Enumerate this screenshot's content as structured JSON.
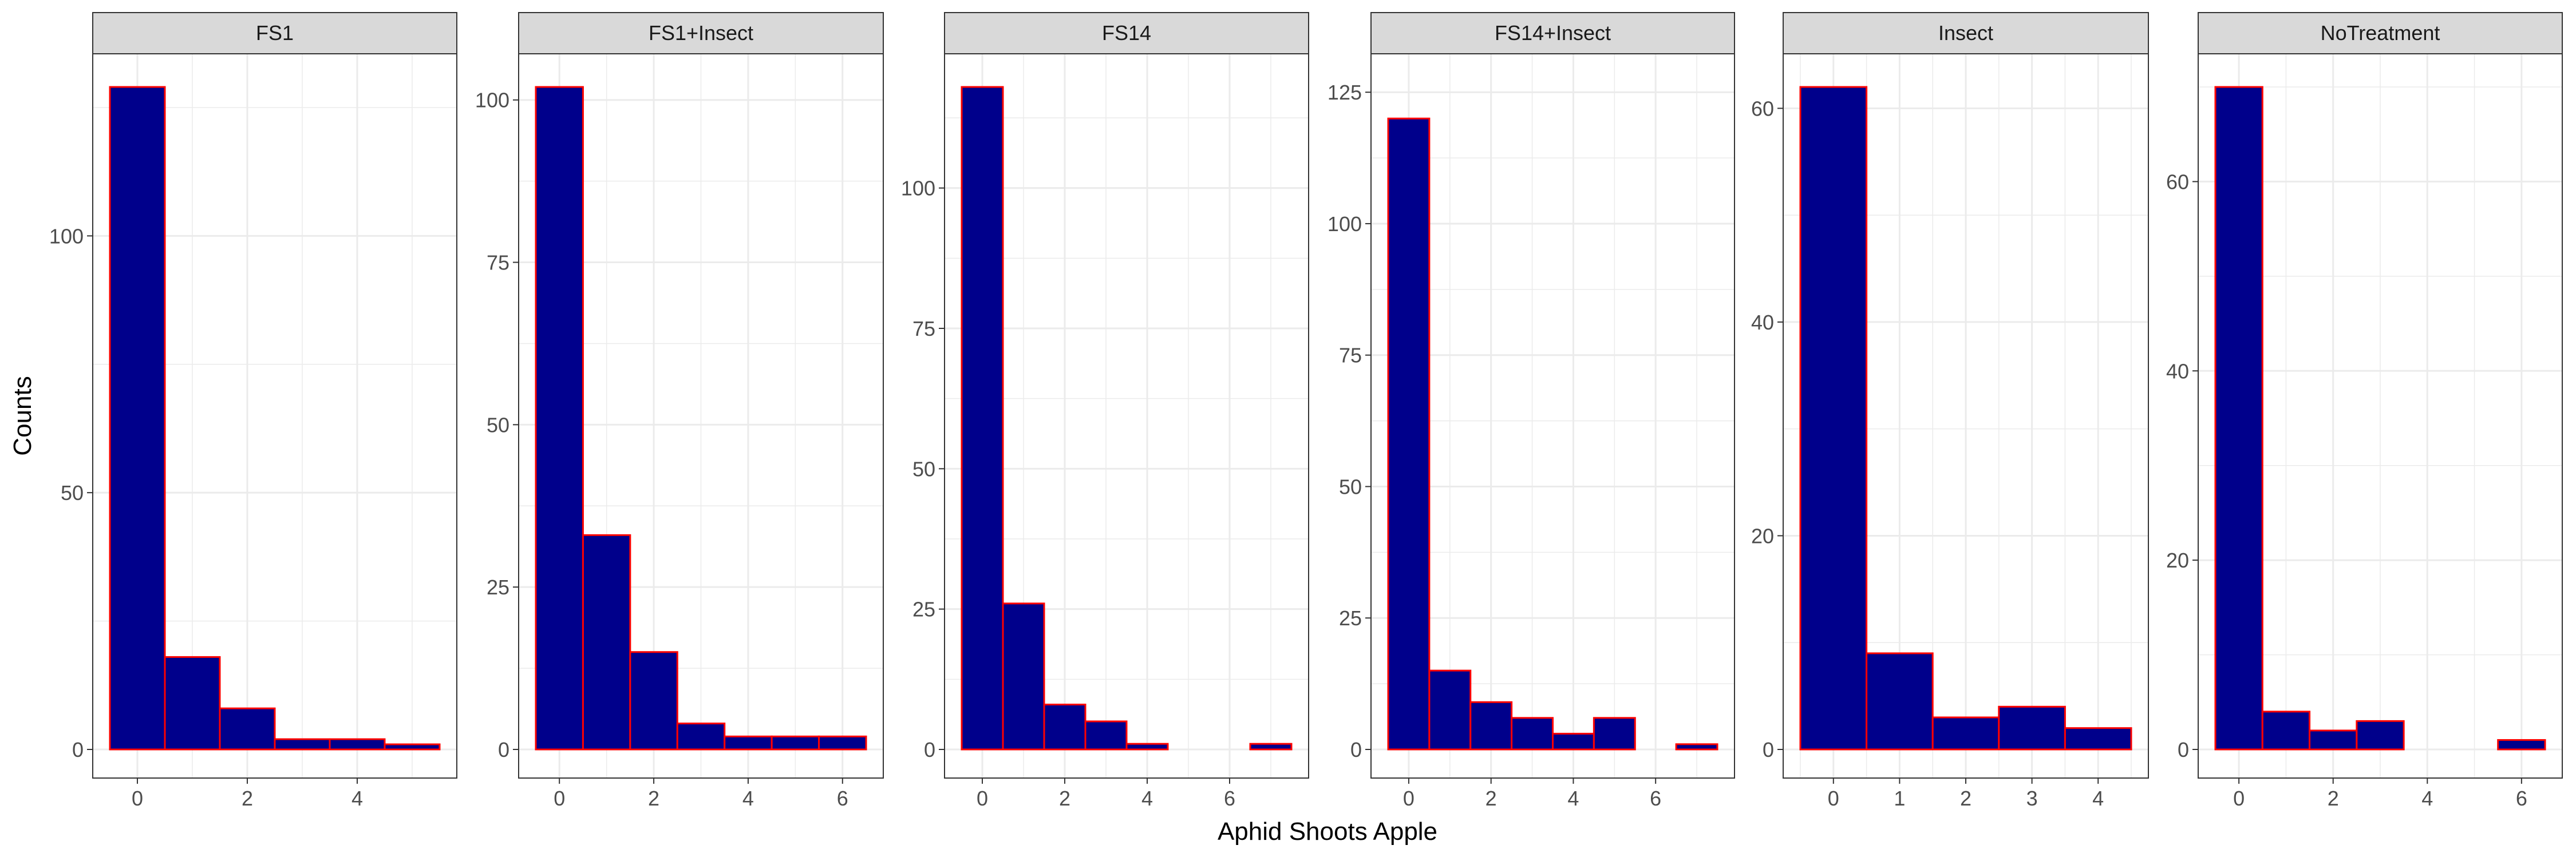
{
  "chart_data": {
    "type": "bar",
    "xlabel": "Aphid Shoots Apple",
    "ylabel": "Counts",
    "colors": {
      "fill": "#00008B",
      "outline": "#FF0000",
      "strip": "#D9D9D9",
      "grid": "#EBEBEB"
    },
    "facets": [
      {
        "name": "FS1",
        "x": [
          0,
          1,
          2,
          3,
          4,
          5
        ],
        "values": [
          129,
          18,
          8,
          2,
          2,
          1
        ],
        "xlim": [
          -0.5,
          5.5
        ],
        "ylim": [
          0,
          129
        ],
        "xticks": [
          "0",
          "2",
          "4"
        ],
        "xtick_values": [
          0,
          2,
          4
        ],
        "yticks": [
          "0",
          "50",
          "100"
        ],
        "ytick_values": [
          0,
          50,
          100
        ]
      },
      {
        "name": "FS1+Insect",
        "x": [
          0,
          1,
          2,
          3,
          4,
          5,
          6
        ],
        "values": [
          102,
          33,
          15,
          4,
          2,
          2,
          2
        ],
        "xlim": [
          -0.5,
          6.5
        ],
        "ylim": [
          0,
          102
        ],
        "xticks": [
          "0",
          "2",
          "4",
          "6"
        ],
        "xtick_values": [
          0,
          2,
          4,
          6
        ],
        "yticks": [
          "0",
          "25",
          "50",
          "75",
          "100"
        ],
        "ytick_values": [
          0,
          25,
          50,
          75,
          100
        ]
      },
      {
        "name": "FS14",
        "x": [
          0,
          1,
          2,
          3,
          4,
          5,
          6,
          7
        ],
        "values": [
          118,
          26,
          8,
          5,
          1,
          0,
          0,
          1
        ],
        "xlim": [
          -0.5,
          7.5
        ],
        "ylim": [
          0,
          118
        ],
        "xticks": [
          "0",
          "2",
          "4",
          "6"
        ],
        "xtick_values": [
          0,
          2,
          4,
          6
        ],
        "yticks": [
          "0",
          "25",
          "50",
          "75",
          "100"
        ],
        "ytick_values": [
          0,
          25,
          50,
          75,
          100
        ]
      },
      {
        "name": "FS14+Insect",
        "x": [
          0,
          1,
          2,
          3,
          4,
          5,
          6,
          7
        ],
        "values": [
          120,
          15,
          9,
          6,
          3,
          6,
          0,
          1
        ],
        "xlim": [
          -0.5,
          7.5
        ],
        "ylim": [
          0,
          126
        ],
        "xticks": [
          "0",
          "2",
          "4",
          "6"
        ],
        "xtick_values": [
          0,
          2,
          4,
          6
        ],
        "yticks": [
          "0",
          "25",
          "50",
          "75",
          "100",
          "125"
        ],
        "ytick_values": [
          0,
          25,
          50,
          75,
          100,
          125
        ]
      },
      {
        "name": "Insect",
        "x": [
          0,
          1,
          2,
          3,
          4
        ],
        "values": [
          62,
          9,
          3,
          4,
          2
        ],
        "xlim": [
          -0.5,
          4.5
        ],
        "ylim": [
          0,
          62
        ],
        "xticks": [
          "0",
          "1",
          "2",
          "3",
          "4"
        ],
        "xtick_values": [
          0,
          1,
          2,
          3,
          4
        ],
        "yticks": [
          "0",
          "20",
          "40",
          "60"
        ],
        "ytick_values": [
          0,
          20,
          40,
          60
        ]
      },
      {
        "name": "NoTreatment",
        "x": [
          0,
          1,
          2,
          3,
          4,
          5,
          6
        ],
        "values": [
          70,
          4,
          2,
          3,
          0,
          0,
          1
        ],
        "xlim": [
          -0.5,
          6.5
        ],
        "ylim": [
          0,
          70
        ],
        "xticks": [
          "0",
          "2",
          "4",
          "6"
        ],
        "xtick_values": [
          0,
          2,
          4,
          6
        ],
        "yticks": [
          "0",
          "20",
          "40",
          "60"
        ],
        "ytick_values": [
          0,
          20,
          40,
          60
        ]
      }
    ]
  }
}
